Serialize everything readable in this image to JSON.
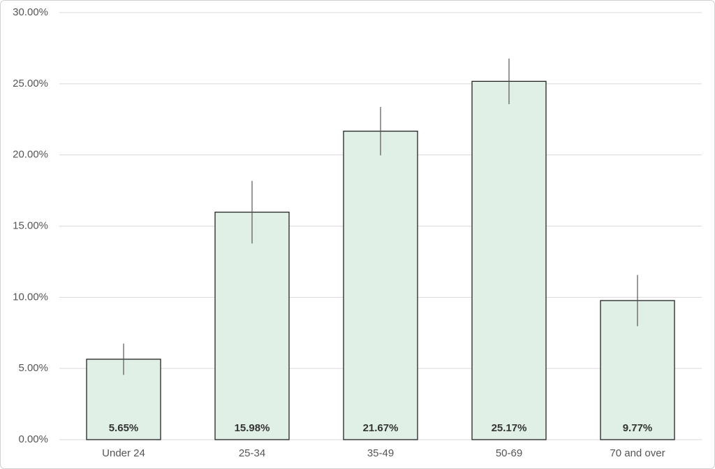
{
  "chart_data": {
    "type": "bar",
    "categories": [
      "Under 24",
      "25-34",
      "35-49",
      "50-69",
      "70 and over"
    ],
    "values": [
      5.65,
      15.98,
      21.67,
      25.17,
      9.77
    ],
    "value_labels": [
      "5.65%",
      "15.98%",
      "21.67%",
      "25.17%",
      "9.77%"
    ],
    "errors": [
      1.1,
      2.2,
      1.7,
      1.6,
      1.8
    ],
    "color": "#e0f0e6",
    "ylim": [
      0,
      30
    ],
    "yticks": [
      {
        "value": 0,
        "label": "0.00%"
      },
      {
        "value": 5,
        "label": "5.00%"
      },
      {
        "value": 10,
        "label": "10.00%"
      },
      {
        "value": 15,
        "label": "15.00%"
      },
      {
        "value": 20,
        "label": "20.00%"
      },
      {
        "value": 25,
        "label": "25.00%"
      },
      {
        "value": 30,
        "label": "30.00%"
      }
    ],
    "grid": true
  }
}
